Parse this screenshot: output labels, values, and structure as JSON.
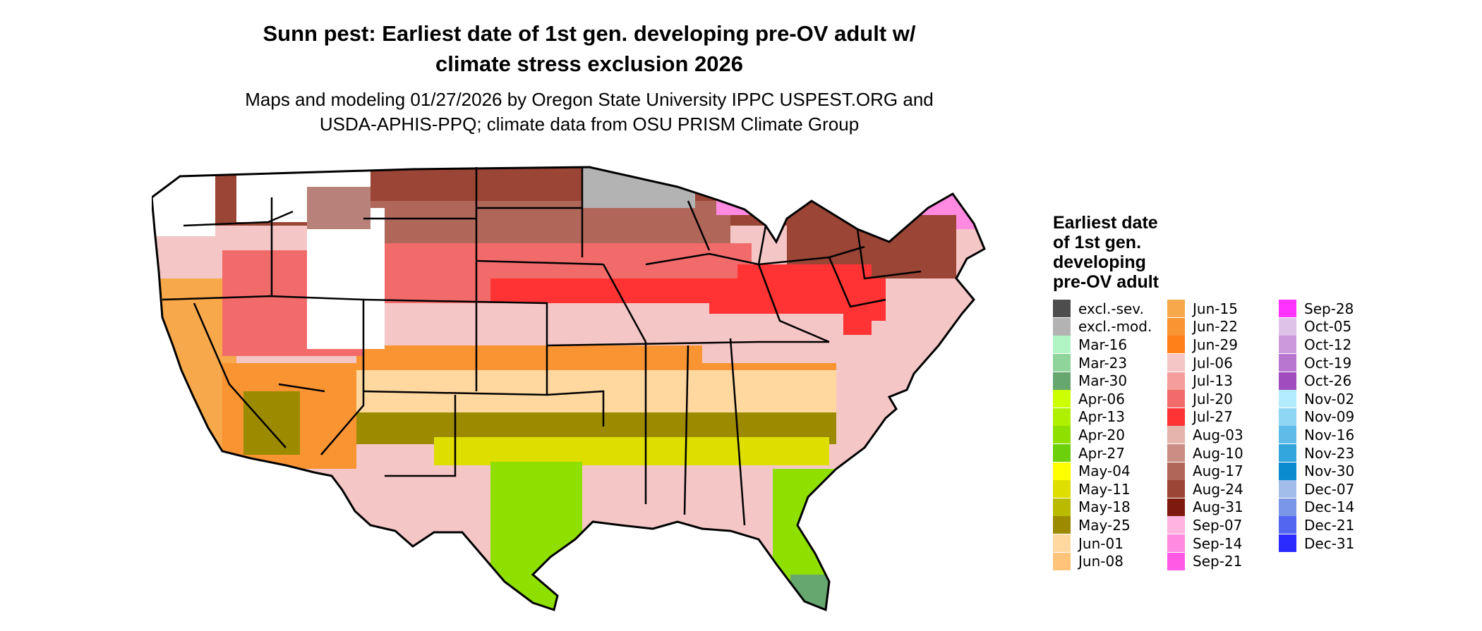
{
  "title_line1": "Sunn pest: Earliest date of 1st gen. developing pre-OV adult w/",
  "title_line2": "climate stress exclusion 2026",
  "subtitle_line1": "Maps and modeling 01/27/2026 by Oregon State University IPPC USPEST.ORG and",
  "subtitle_line2": "USDA-APHIS-PPQ; climate data from OSU PRISM Climate Group",
  "legend": {
    "title_lines": [
      "Earliest date",
      "of 1st gen.",
      "developing",
      "pre-OV adult"
    ],
    "columns": [
      [
        {
          "label": "excl.-sev.",
          "color": "#4d4d4d"
        },
        {
          "label": "excl.-mod.",
          "color": "#b3b3b3"
        },
        {
          "label": "Mar-16",
          "color": "#b2f5c4"
        },
        {
          "label": "Mar-23",
          "color": "#8fd49a"
        },
        {
          "label": "Mar-30",
          "color": "#66a66f"
        },
        {
          "label": "Apr-06",
          "color": "#ccff00"
        },
        {
          "label": "Apr-13",
          "color": "#aef000"
        },
        {
          "label": "Apr-20",
          "color": "#8fe000"
        },
        {
          "label": "Apr-27",
          "color": "#6cd10c"
        },
        {
          "label": "May-04",
          "color": "#ffff00"
        },
        {
          "label": "May-11",
          "color": "#dede00"
        },
        {
          "label": "May-18",
          "color": "#baba00"
        },
        {
          "label": "May-25",
          "color": "#9c8b00"
        },
        {
          "label": "Jun-01",
          "color": "#ffd8a0"
        },
        {
          "label": "Jun-08",
          "color": "#ffc47a"
        }
      ],
      [
        {
          "label": "Jun-15",
          "color": "#f7a84a"
        },
        {
          "label": "Jun-22",
          "color": "#f99433"
        },
        {
          "label": "Jun-29",
          "color": "#ff7f19"
        },
        {
          "label": "Jul-06",
          "color": "#f5c6c6"
        },
        {
          "label": "Jul-13",
          "color": "#f59d9d"
        },
        {
          "label": "Jul-20",
          "color": "#f26b6b"
        },
        {
          "label": "Jul-27",
          "color": "#ff3333"
        },
        {
          "label": "Aug-03",
          "color": "#e5b4ac"
        },
        {
          "label": "Aug-10",
          "color": "#cb8e84"
        },
        {
          "label": "Aug-17",
          "color": "#b0675a"
        },
        {
          "label": "Aug-24",
          "color": "#9a4535"
        },
        {
          "label": "Aug-31",
          "color": "#7d1a0d"
        },
        {
          "label": "Sep-07",
          "color": "#ffb3e0"
        },
        {
          "label": "Sep-14",
          "color": "#ff8ae0"
        },
        {
          "label": "Sep-21",
          "color": "#ff5ae6"
        }
      ],
      [
        {
          "label": "Sep-28",
          "color": "#ff33ff"
        },
        {
          "label": "Oct-05",
          "color": "#dfc2e8"
        },
        {
          "label": "Oct-12",
          "color": "#cc99dd"
        },
        {
          "label": "Oct-19",
          "color": "#b876d0"
        },
        {
          "label": "Oct-26",
          "color": "#a04cbf"
        },
        {
          "label": "Nov-02",
          "color": "#b3ecff"
        },
        {
          "label": "Nov-09",
          "color": "#8fd6f5"
        },
        {
          "label": "Nov-16",
          "color": "#5fbce8"
        },
        {
          "label": "Nov-23",
          "color": "#33a6dd"
        },
        {
          "label": "Nov-30",
          "color": "#0a8bcf"
        },
        {
          "label": "Dec-07",
          "color": "#a3bdeb"
        },
        {
          "label": "Dec-14",
          "color": "#7a96e8"
        },
        {
          "label": "Dec-21",
          "color": "#5266f0"
        },
        {
          "label": "Dec-31",
          "color": "#2b2bff"
        }
      ]
    ]
  },
  "map": {
    "background_color": "#ffffff",
    "border_color": "#000000"
  }
}
